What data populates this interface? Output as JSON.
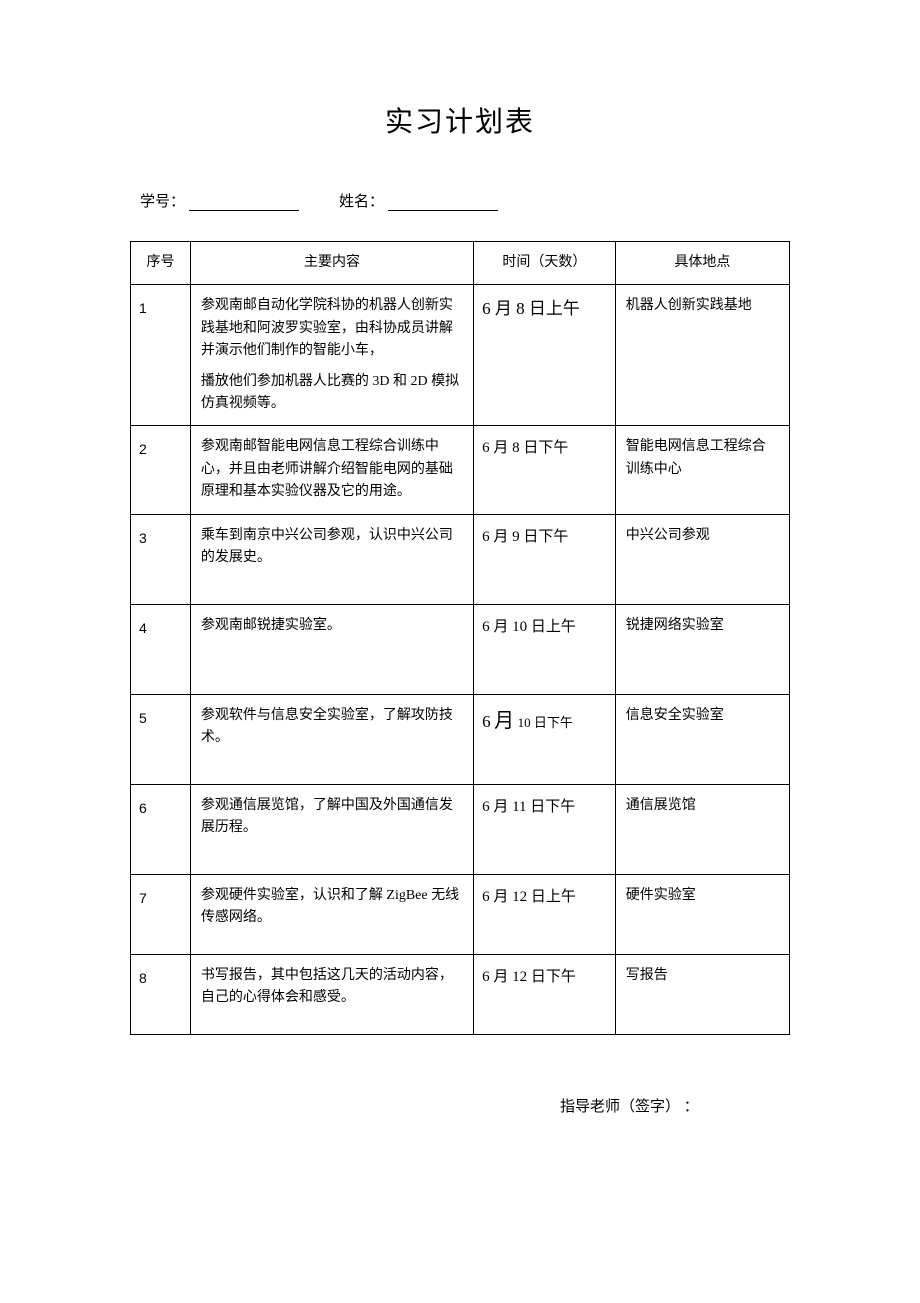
{
  "title": "实习计划表",
  "fields": {
    "student_id_label": "学号：",
    "name_label": "姓名："
  },
  "headers": {
    "num": "序号",
    "content": "主要内容",
    "time": "时间（天数）",
    "place": "具体地点"
  },
  "rows": [
    {
      "num": "1",
      "content_p1": "参观南邮自动化学院科协的机器人创新实践基地和阿波罗实验室，由科协成员讲解并演示他们制作的智能小车，",
      "content_p2": "播放他们参加机器人比赛的 3D 和 2D 模拟仿真视频等。",
      "time": "6 月 8 日上午",
      "place": "机器人创新实践基地"
    },
    {
      "num": "2",
      "content_p1": "参观南邮智能电网信息工程综合训练中心，并且由老师讲解介绍智能电网的基础原理和基本实验仪器及它的用途。",
      "time": "6 月 8 日下午",
      "place": "智能电网信息工程综合训练中心"
    },
    {
      "num": "3",
      "content_p1": "乘车到南京中兴公司参观，认识中兴公司的发展史。",
      "time": "6 月 9 日下午",
      "place": "中兴公司参观"
    },
    {
      "num": "4",
      "content_p1": "参观南邮锐捷实验室。",
      "time": "6 月 10 日上午",
      "place": "锐捷网络实验室"
    },
    {
      "num": "5",
      "content_p1": "参观软件与信息安全实验室，了解攻防技术。",
      "time_prefix": "6",
      "time_month": "月",
      "time_suffix": " 10 日下午",
      "place": "信息安全实验室"
    },
    {
      "num": "6",
      "content_p1": "参观通信展览馆，了解中国及外国通信发展历程。",
      "time": "6 月 11 日下午",
      "place": "通信展览馆"
    },
    {
      "num": "7",
      "content_p1": "参观硬件实验室，认识和了解 ZigBee 无线传感网络。",
      "time": "6 月 12 日上午",
      "place": "硬件实验室"
    },
    {
      "num": "8",
      "content_p1": "书写报告，其中包括这几天的活动内容，自己的心得体会和感受。",
      "time": "6 月 12 日下午",
      "place": "写报告"
    }
  ],
  "signature_label": "指导老师（签字） ："
}
